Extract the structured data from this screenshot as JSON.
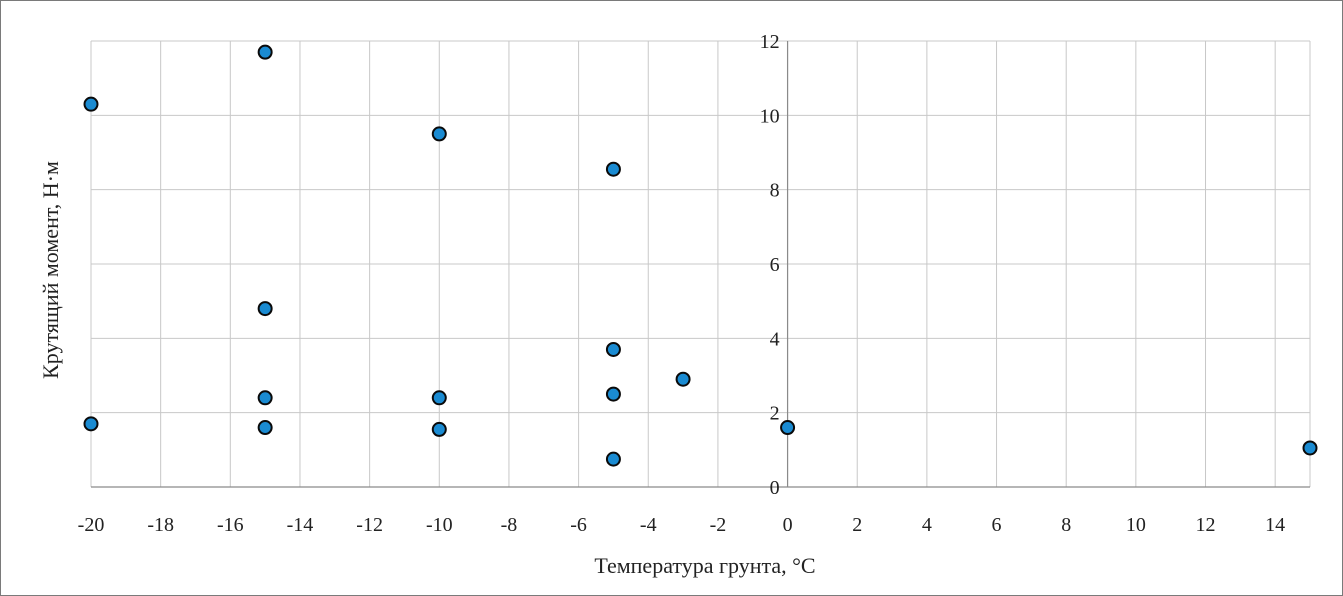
{
  "chart_data": {
    "type": "scatter",
    "title": "",
    "xlabel": "Температура грунта, °C",
    "ylabel": "Крутящий  момент, Н·м",
    "xlim": [
      -20,
      15
    ],
    "ylim": [
      0,
      12
    ],
    "x_ticks": [
      "-20",
      "-18",
      "-16",
      "-14",
      "-12",
      "-10",
      "-8",
      "-6",
      "-4",
      "-2",
      "0",
      "2",
      "4",
      "6",
      "8",
      "10",
      "12",
      "14"
    ],
    "y_ticks": [
      "0",
      "2",
      "4",
      "6",
      "8",
      "10",
      "12"
    ],
    "grid": true,
    "legend": "none",
    "marker_color": "#1a8bd2",
    "marker_edge_color": "#0a0a0a",
    "series": [
      {
        "points": [
          {
            "x": -20,
            "y": 10.3
          },
          {
            "x": -20,
            "y": 1.7
          },
          {
            "x": -15,
            "y": 11.7
          },
          {
            "x": -15,
            "y": 4.8
          },
          {
            "x": -15,
            "y": 2.4
          },
          {
            "x": -15,
            "y": 1.6
          },
          {
            "x": -10,
            "y": 9.5
          },
          {
            "x": -10,
            "y": 2.4
          },
          {
            "x": -10,
            "y": 1.55
          },
          {
            "x": -5,
            "y": 8.55
          },
          {
            "x": -5,
            "y": 3.7
          },
          {
            "x": -5,
            "y": 2.5
          },
          {
            "x": -5,
            "y": 0.75
          },
          {
            "x": -3,
            "y": 2.9
          },
          {
            "x": 0,
            "y": 1.6
          },
          {
            "x": 15,
            "y": 1.05
          }
        ]
      }
    ]
  }
}
